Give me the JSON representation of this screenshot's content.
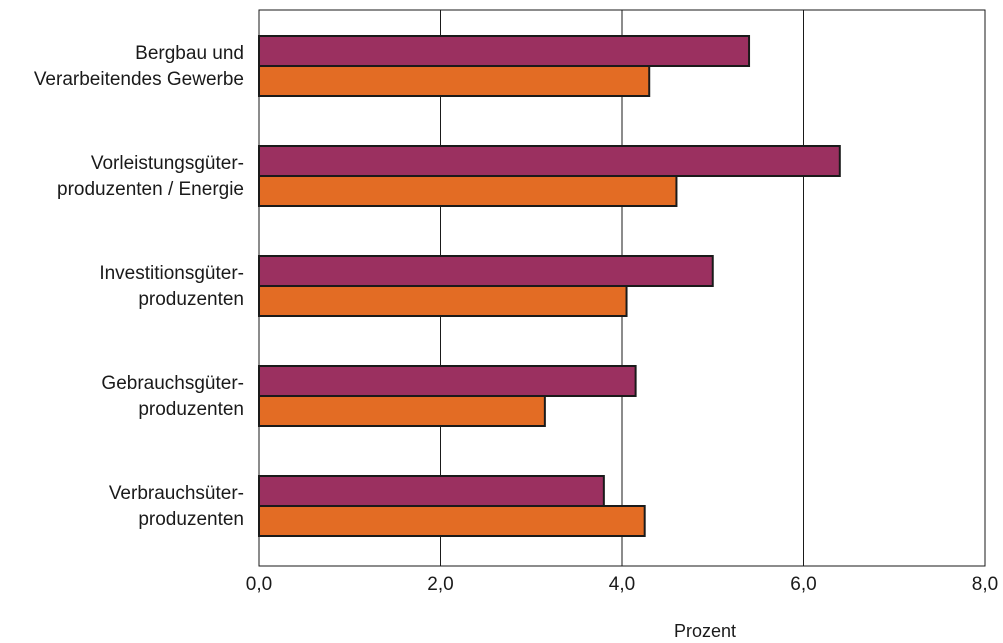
{
  "chart_data": {
    "type": "bar",
    "orientation": "horizontal",
    "categories": [
      [
        "Bergbau und",
        "Verarbeitendes Gewerbe"
      ],
      [
        "Vorleistungsgüter-",
        "produzenten /  Energie"
      ],
      [
        "Investitionsgüter-",
        "produzenten"
      ],
      [
        "Gebrauchsgüter-",
        "produzenten"
      ],
      [
        "Verbrauchsüter-",
        "produzenten"
      ]
    ],
    "series": [
      {
        "color": "#9b3060",
        "values": [
          5.4,
          6.4,
          5.0,
          4.15,
          3.8
        ]
      },
      {
        "color": "#e36c24",
        "values": [
          4.3,
          4.6,
          4.05,
          3.15,
          4.25
        ]
      }
    ],
    "xlim": [
      0,
      8
    ],
    "xticks": [
      0,
      2,
      4,
      6,
      8
    ],
    "xtick_labels": [
      "0,0",
      "2,0",
      "4,0",
      "6,0",
      "8,0"
    ],
    "xlabel": "Prozent",
    "grid": "vertical"
  }
}
